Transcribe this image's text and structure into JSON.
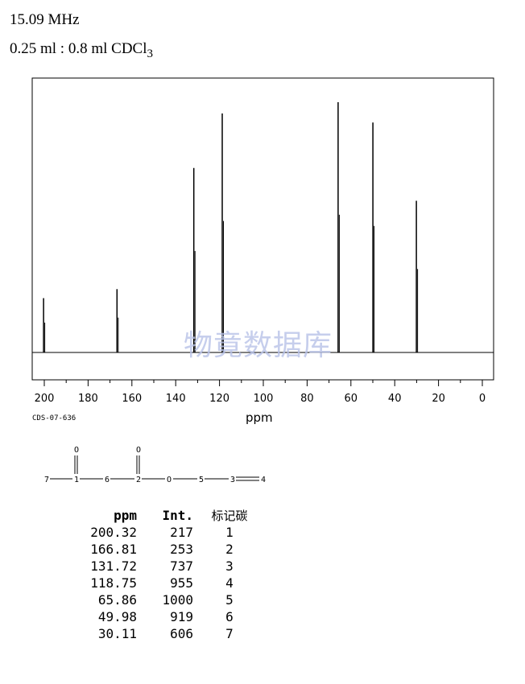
{
  "header": {
    "frequency": "15.09 MHz",
    "solvent_prefix": "0.25 ml : 0.8 ml CDCl",
    "solvent_subscript": "3"
  },
  "code": "CDS-07-636",
  "watermark": "物竟数据库",
  "table": {
    "headers": [
      "ppm",
      "Int.",
      "标记碳"
    ],
    "rows": [
      [
        "200.32",
        "217",
        "1"
      ],
      [
        "166.81",
        "253",
        "2"
      ],
      [
        "131.72",
        "737",
        "3"
      ],
      [
        "118.75",
        "955",
        "4"
      ],
      [
        "65.86",
        "1000",
        "5"
      ],
      [
        "49.98",
        "919",
        "6"
      ],
      [
        "30.11",
        "606",
        "7"
      ]
    ]
  },
  "structure": {
    "atoms": [
      "7",
      "1",
      "6",
      "2",
      "O",
      "5",
      "3",
      "4"
    ],
    "carbonyl_oxygens": [
      "O",
      "O"
    ]
  },
  "chart_data": {
    "type": "line",
    "xlabel": "ppm",
    "ylabel": "",
    "xlim": [
      200,
      0
    ],
    "x_ticks": [
      200,
      180,
      160,
      140,
      120,
      100,
      80,
      60,
      40,
      20,
      0
    ],
    "grid": false,
    "peaks": [
      {
        "ppm": 200.32,
        "intensity": 217
      },
      {
        "ppm": 166.81,
        "intensity": 253
      },
      {
        "ppm": 131.72,
        "intensity": 737
      },
      {
        "ppm": 118.75,
        "intensity": 955
      },
      {
        "ppm": 65.86,
        "intensity": 1000
      },
      {
        "ppm": 49.98,
        "intensity": 919
      },
      {
        "ppm": 30.11,
        "intensity": 606
      }
    ]
  }
}
